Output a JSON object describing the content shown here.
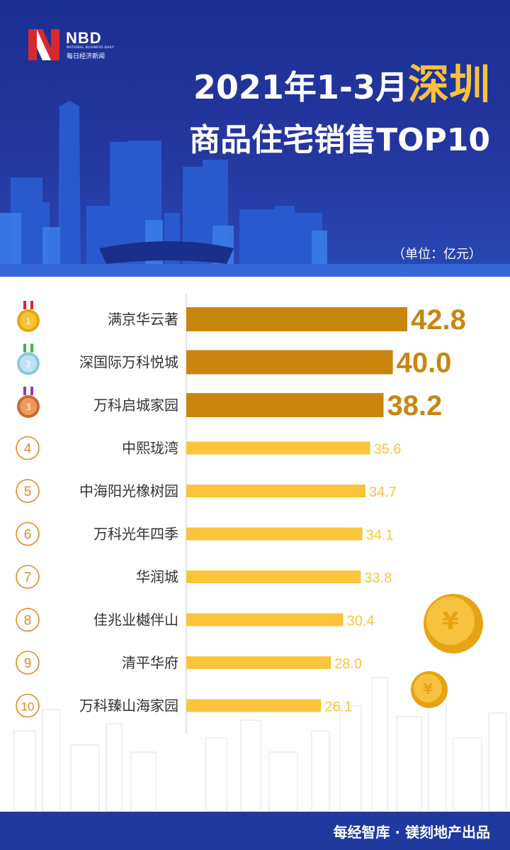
{
  "brand": {
    "logo_text": "NBD",
    "logo_sub_en": "NATIONAL BUSINESS DAILY",
    "logo_sub_cn": "每日经济新闻"
  },
  "header": {
    "title_prefix": "2021年1-3月",
    "title_city": "深圳",
    "title_line2": "商品住宅销售TOP10",
    "unit": "（单位：亿元）"
  },
  "colors": {
    "header_bg": "#23379f",
    "accent_gold": "#f7c23e",
    "top3_bar": "#c9860f",
    "other_bar": "#fbc43b",
    "rank_circle": "#e08a2a"
  },
  "chart_data": {
    "type": "bar",
    "orientation": "horizontal",
    "categories": [
      "满京华云著",
      "深国际万科悦城",
      "万科启城家园",
      "中熙珑湾",
      "中海阳光橡树园",
      "万科光年四季",
      "华润城",
      "佳兆业樾伴山",
      "清平华府",
      "万科臻山海家园"
    ],
    "ranks": [
      "1",
      "2",
      "3",
      "4",
      "5",
      "6",
      "7",
      "8",
      "9",
      "10"
    ],
    "series": [
      {
        "values": [
          42.8,
          40.0,
          38.2,
          35.6,
          34.7,
          34.1,
          33.8,
          30.4,
          28.0,
          26.1
        ],
        "labels": [
          "42.8",
          "40.0",
          "38.2",
          "35.6",
          "34.7",
          "34.1",
          "33.8",
          "30.4",
          "28.0",
          "26.1"
        ]
      }
    ],
    "title": "2021年1-3月深圳商品住宅销售TOP10",
    "xlabel": "",
    "ylabel": "",
    "unit": "亿元",
    "xlim": [
      0,
      42.8
    ],
    "grid": false,
    "legend": "none"
  },
  "footer": {
    "credit": "每经智库 · 镁刻地产出品"
  }
}
